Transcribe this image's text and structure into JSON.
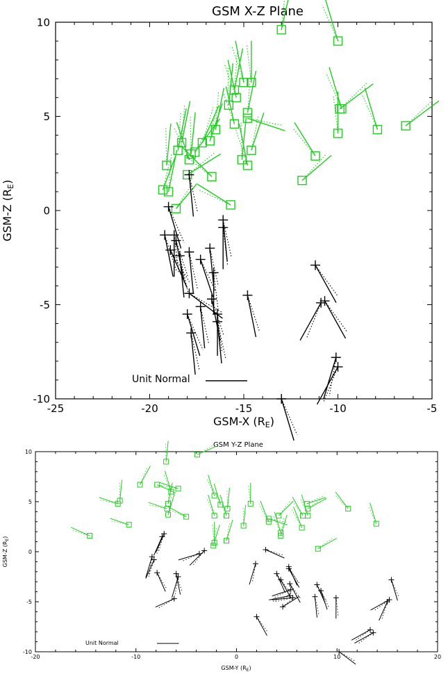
{
  "chart_data": [
    {
      "type": "scatter",
      "title": "GSM X-Z Plane",
      "xlabel": "GSM-X (R",
      "xlabel_sub": "E",
      "ylabel": "GSM-Z (R",
      "ylabel_sub": "E",
      "xlim": [
        -25,
        -5
      ],
      "ylim": [
        -10,
        10
      ],
      "xticks": [
        "-25",
        "-20",
        "-15",
        "-10",
        "-5"
      ],
      "yticks": [
        "-10",
        "-5",
        "0",
        "5",
        "10"
      ],
      "xtick_values": [
        -25,
        -20,
        -15,
        -10,
        -5
      ],
      "ytick_values": [
        -10,
        -5,
        0,
        5,
        10
      ],
      "legend_text": "Unit Normal",
      "legend_length": 1.9,
      "series": [
        {
          "marker": "square",
          "color": "#22cc22",
          "points": [
            [
              -13.0,
              9.6,
              0.2,
              0.9
            ],
            [
              -10.0,
              9.0,
              -0.3,
              1.0
            ],
            [
              -14.6,
              6.8,
              0.0,
              1.0
            ],
            [
              -15.5,
              6.4,
              0.2,
              1.0
            ],
            [
              -15.0,
              6.8,
              -0.2,
              1.0
            ],
            [
              -15.4,
              6.0,
              -0.2,
              0.9
            ],
            [
              -15.8,
              5.6,
              0.1,
              1.0
            ],
            [
              -14.8,
              5.2,
              0.2,
              1.0
            ],
            [
              -14.8,
              4.9,
              0.9,
              -0.3
            ],
            [
              -15.5,
              4.6,
              -0.2,
              0.9
            ],
            [
              -16.5,
              4.3,
              0.2,
              1.0
            ],
            [
              -16.8,
              3.7,
              0.3,
              0.9
            ],
            [
              -17.2,
              3.6,
              0.4,
              0.9
            ],
            [
              -17.6,
              3.1,
              0.6,
              0.8
            ],
            [
              -18.3,
              3.6,
              0.2,
              1.0
            ],
            [
              -17.8,
              3.0,
              0.1,
              1.0
            ],
            [
              -18.5,
              3.2,
              0.2,
              1.0
            ],
            [
              -17.9,
              2.7,
              -0.3,
              0.9
            ],
            [
              -15.1,
              2.7,
              0.1,
              1.0
            ],
            [
              -14.6,
              3.2,
              0.3,
              0.9
            ],
            [
              -14.8,
              2.4,
              -0.2,
              1.0
            ],
            [
              -18.0,
              1.9,
              0.8,
              0.5
            ],
            [
              -19.1,
              2.4,
              0.1,
              1.0
            ],
            [
              -19.0,
              1.0,
              0.2,
              1.0
            ],
            [
              -19.3,
              1.1,
              0.3,
              0.8
            ],
            [
              -18.6,
              0.1,
              0.5,
              0.6
            ],
            [
              -16.7,
              1.8,
              -0.7,
              0.7
            ],
            [
              -15.7,
              0.3,
              -0.8,
              0.5
            ],
            [
              -11.2,
              2.9,
              -0.5,
              0.8
            ],
            [
              -11.9,
              1.6,
              0.7,
              0.6
            ],
            [
              -10.0,
              4.1,
              0.0,
              1.0
            ],
            [
              -9.8,
              5.4,
              -0.3,
              1.0
            ],
            [
              -9.9,
              5.4,
              0.8,
              0.6
            ],
            [
              -7.9,
              4.3,
              -0.3,
              1.0
            ],
            [
              -6.4,
              4.5,
              0.8,
              0.6
            ]
          ]
        },
        {
          "marker": "plus",
          "color": "#000000",
          "points": [
            [
              -17.9,
              1.9,
              0.1,
              -1.0
            ],
            [
              -19.0,
              0.2,
              0.3,
              -1.0
            ],
            [
              -19.2,
              -1.3,
              0.2,
              -1.0
            ],
            [
              -18.7,
              -1.3,
              0.0,
              -1.0
            ],
            [
              -18.6,
              -1.6,
              0.2,
              -1.0
            ],
            [
              -18.9,
              -2.1,
              0.4,
              -0.9
            ],
            [
              -18.4,
              -2.4,
              0.1,
              -1.0
            ],
            [
              -17.9,
              -2.2,
              0.1,
              -1.0
            ],
            [
              -17.3,
              -2.6,
              0.3,
              -0.9
            ],
            [
              -16.8,
              -2.0,
              0.1,
              -1.0
            ],
            [
              -16.1,
              -0.5,
              0.1,
              -1.0
            ],
            [
              -16.1,
              -0.9,
              0.0,
              -1.0
            ],
            [
              -16.6,
              -3.3,
              0.0,
              -1.0
            ],
            [
              -16.7,
              -4.7,
              0.2,
              -1.0
            ],
            [
              -17.9,
              -4.4,
              0.8,
              -0.6
            ],
            [
              -16.4,
              -5.5,
              0.0,
              -1.0
            ],
            [
              -16.4,
              -5.9,
              0.1,
              -1.0
            ],
            [
              -17.3,
              -5.1,
              0.1,
              -1.0
            ],
            [
              -18.0,
              -5.5,
              0.3,
              -1.0
            ],
            [
              -17.8,
              -6.5,
              0.1,
              -1.0
            ],
            [
              -14.8,
              -4.5,
              0.2,
              -1.0
            ],
            [
              -11.2,
              -2.9,
              0.5,
              -0.9
            ],
            [
              -10.9,
              -4.9,
              -0.5,
              -0.9
            ],
            [
              -10.7,
              -4.8,
              0.5,
              -0.9
            ],
            [
              -10.1,
              -7.8,
              -0.3,
              -1.0
            ],
            [
              -10.0,
              -8.3,
              -0.5,
              -0.9
            ],
            [
              -13.0,
              -10.0,
              0.3,
              -1.0
            ]
          ]
        }
      ]
    },
    {
      "type": "scatter",
      "title": "GSM Y-Z Plane",
      "xlabel": "GSM-Y (R",
      "xlabel_sub": "E",
      "ylabel": "GSM-Z (R",
      "ylabel_sub": "E",
      "xlim": [
        -20,
        20
      ],
      "ylim": [
        -10,
        10
      ],
      "xticks": [
        "-20",
        "-10",
        "0",
        "10",
        "20"
      ],
      "yticks": [
        "-10",
        "-5",
        "0",
        "5",
        "10"
      ],
      "xtick_values": [
        -20,
        -10,
        0,
        10,
        20
      ],
      "ytick_values": [
        -10,
        -5,
        0,
        5,
        10
      ],
      "legend_text": "Unit Normal",
      "legend_length": 2.0,
      "series": [
        {
          "marker": "square",
          "color": "#22cc22",
          "points": [
            [
              -7.0,
              9.0,
              0.1,
              1.0
            ],
            [
              -3.9,
              9.7,
              0.9,
              0.4
            ],
            [
              -9.6,
              6.7,
              0.5,
              0.9
            ],
            [
              -7.9,
              6.7,
              0.9,
              -0.4
            ],
            [
              -6.5,
              6.0,
              -0.3,
              1.0
            ],
            [
              -5.8,
              6.3,
              -0.9,
              0.3
            ],
            [
              -11.6,
              5.1,
              0.1,
              1.0
            ],
            [
              -11.8,
              4.8,
              -0.9,
              0.3
            ],
            [
              -6.8,
              4.8,
              0.2,
              1.0
            ],
            [
              -6.9,
              4.3,
              -0.9,
              0.3
            ],
            [
              -6.8,
              3.7,
              0.3,
              1.0
            ],
            [
              -5.0,
              3.5,
              -0.9,
              0.5
            ],
            [
              -10.7,
              2.7,
              -0.9,
              0.3
            ],
            [
              -14.6,
              1.6,
              -0.9,
              0.4
            ],
            [
              -2.2,
              5.6,
              -0.3,
              1.0
            ],
            [
              -2.2,
              3.6,
              -0.3,
              1.0
            ],
            [
              -1.6,
              4.7,
              -0.3,
              1.0
            ],
            [
              -1.0,
              3.6,
              -0.3,
              1.0
            ],
            [
              -0.9,
              4.3,
              0.1,
              1.0
            ],
            [
              -2.2,
              0.9,
              0.0,
              1.0
            ],
            [
              -2.3,
              0.6,
              0.3,
              1.0
            ],
            [
              -1.0,
              1.1,
              0.3,
              1.0
            ],
            [
              0.7,
              2.6,
              0.1,
              1.0
            ],
            [
              1.4,
              4.8,
              0.0,
              1.0
            ],
            [
              3.2,
              3.0,
              -0.4,
              1.0
            ],
            [
              3.2,
              3.3,
              0.9,
              -0.3
            ],
            [
              4.4,
              1.9,
              -0.3,
              1.0
            ],
            [
              4.4,
              1.6,
              0.3,
              1.0
            ],
            [
              4.2,
              3.6,
              0.7,
              0.7
            ],
            [
              6.6,
              3.6,
              -0.5,
              0.9
            ],
            [
              6.5,
              2.4,
              -0.4,
              1.0
            ],
            [
              7.1,
              3.6,
              -0.3,
              1.0
            ],
            [
              7.1,
              4.3,
              0.9,
              0.5
            ],
            [
              7.0,
              4.8,
              0.9,
              0.3
            ],
            [
              8.1,
              0.3,
              0.9,
              0.5
            ],
            [
              11.1,
              4.3,
              -0.6,
              0.8
            ],
            [
              13.9,
              2.8,
              -0.3,
              1.0
            ]
          ]
        },
        {
          "marker": "plus",
          "color": "#000000",
          "points": [
            [
              -7.2,
              1.8,
              -0.4,
              -0.9
            ],
            [
              -7.4,
              1.5,
              -0.4,
              -0.9
            ],
            [
              -8.4,
              -0.5,
              -0.3,
              -1.0
            ],
            [
              -8.2,
              -0.8,
              -0.4,
              -0.9
            ],
            [
              -7.9,
              -2.1,
              0.4,
              -0.9
            ],
            [
              -6.0,
              -2.2,
              0.2,
              -1.0
            ],
            [
              -5.8,
              -2.5,
              -0.3,
              -1.0
            ],
            [
              -6.2,
              -4.7,
              -0.9,
              -0.4
            ],
            [
              -3.7,
              -0.2,
              -1.0,
              -0.3
            ],
            [
              -3.2,
              0.1,
              -0.7,
              -0.7
            ],
            [
              1.9,
              -1.2,
              -0.3,
              -1.0
            ],
            [
              2.0,
              -6.5,
              0.5,
              -0.9
            ],
            [
              2.9,
              0.2,
              0.9,
              -0.4
            ],
            [
              4.0,
              -2.2,
              0.4,
              -0.9
            ],
            [
              4.4,
              -2.8,
              0.5,
              -0.9
            ],
            [
              5.2,
              -1.7,
              0.5,
              -0.9
            ],
            [
              5.2,
              -1.5,
              0.4,
              -0.9
            ],
            [
              5.3,
              -3.2,
              0.5,
              -0.9
            ],
            [
              5.4,
              -3.8,
              -0.9,
              -0.3
            ],
            [
              5.3,
              -4.4,
              -1.0,
              -0.2
            ],
            [
              5.6,
              -4.6,
              -1.0,
              -0.1
            ],
            [
              4.6,
              -5.5,
              0.8,
              0.5
            ],
            [
              7.8,
              -4.5,
              0.1,
              -1.0
            ],
            [
              8.0,
              -3.3,
              0.4,
              -0.9
            ],
            [
              8.4,
              -3.9,
              0.3,
              -0.9
            ],
            [
              9.9,
              -4.6,
              0.0,
              -1.0
            ],
            [
              10.2,
              -10.0,
              0.8,
              -0.6
            ],
            [
              13.3,
              -7.8,
              -0.9,
              -0.5
            ],
            [
              13.6,
              -8.1,
              -0.9,
              -0.5
            ],
            [
              15.2,
              -4.8,
              -0.9,
              -0.5
            ],
            [
              15.0,
              -5.0,
              -0.4,
              -0.9
            ],
            [
              15.4,
              -2.8,
              0.3,
              -1.0
            ]
          ]
        }
      ]
    }
  ]
}
